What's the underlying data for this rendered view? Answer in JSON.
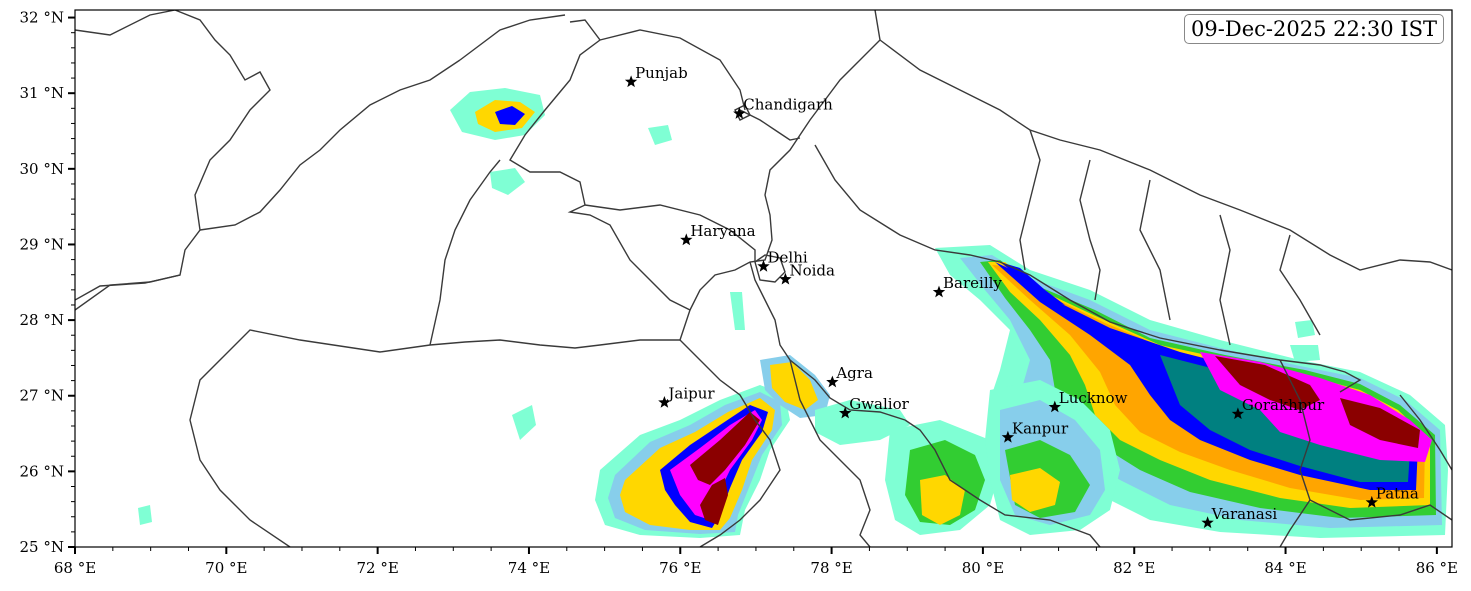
{
  "timestamp": "09-Dec-2025 22:30 IST",
  "axes": {
    "lon_ticks": [
      {
        "value": 68,
        "label": "68 °E"
      },
      {
        "value": 70,
        "label": "70 °E"
      },
      {
        "value": 72,
        "label": "72 °E"
      },
      {
        "value": 74,
        "label": "74 °E"
      },
      {
        "value": 76,
        "label": "76 °E"
      },
      {
        "value": 78,
        "label": "78 °E"
      },
      {
        "value": 80,
        "label": "80 °E"
      },
      {
        "value": 82,
        "label": "82 °E"
      },
      {
        "value": 84,
        "label": "84 °E"
      },
      {
        "value": 86,
        "label": "86 °E"
      }
    ],
    "lat_ticks": [
      {
        "value": 25,
        "label": "25 °N"
      },
      {
        "value": 26,
        "label": "26 °N"
      },
      {
        "value": 27,
        "label": "27 °N"
      },
      {
        "value": 28,
        "label": "28 °N"
      },
      {
        "value": 29,
        "label": "29 °N"
      },
      {
        "value": 30,
        "label": "30 °N"
      },
      {
        "value": 31,
        "label": "31 °N"
      },
      {
        "value": 32,
        "label": "32 °N"
      }
    ],
    "lon_range": [
      68,
      86.2
    ],
    "lat_range": [
      25,
      32.1
    ]
  },
  "cities": [
    {
      "name": "Punjab",
      "lon": 75.35,
      "lat": 31.15
    },
    {
      "name": "Chandigarh",
      "lon": 76.78,
      "lat": 30.73
    },
    {
      "name": "Haryana",
      "lon": 76.08,
      "lat": 29.06
    },
    {
      "name": "Delhi",
      "lon": 77.1,
      "lat": 28.71
    },
    {
      "name": "Noida",
      "lon": 77.39,
      "lat": 28.54
    },
    {
      "name": "Bareilly",
      "lon": 79.42,
      "lat": 28.37
    },
    {
      "name": "Agra",
      "lon": 78.01,
      "lat": 27.18
    },
    {
      "name": "Jaipur",
      "lon": 75.79,
      "lat": 26.91
    },
    {
      "name": "Gwalior",
      "lon": 78.18,
      "lat": 26.77
    },
    {
      "name": "Lucknow",
      "lon": 80.95,
      "lat": 26.85
    },
    {
      "name": "Gorakhpur",
      "lon": 83.37,
      "lat": 26.76
    },
    {
      "name": "Kanpur",
      "lon": 80.33,
      "lat": 26.45
    },
    {
      "name": "Patna",
      "lon": 85.14,
      "lat": 25.59
    },
    {
      "name": "Varanasi",
      "lon": 82.97,
      "lat": 25.32
    }
  ],
  "colors": {
    "level1": "#7fffd4",
    "level2": "#87ceeb",
    "level3": "#32cd32",
    "level4": "#ffd700",
    "level5": "#ffa500",
    "level6": "#0000ff",
    "level7": "#008080",
    "level8": "#ff00ff",
    "level9": "#8b0000",
    "border": "#3a3a3a"
  }
}
